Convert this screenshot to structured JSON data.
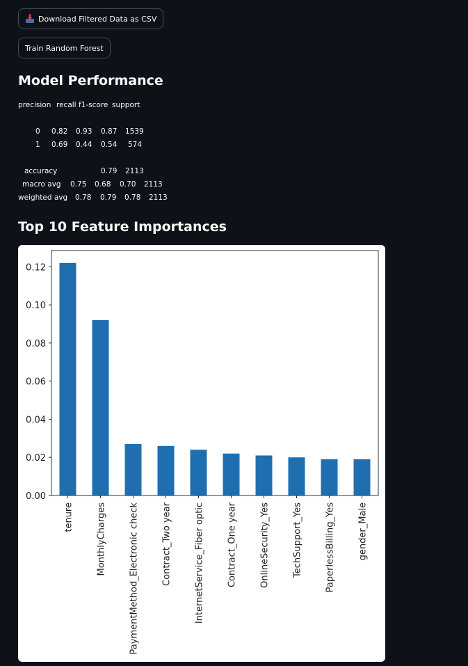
{
  "buttons": {
    "download_label": "Download Filtered Data as CSV",
    "train_label": "Train Random Forest"
  },
  "sections": {
    "model_performance": "Model Performance",
    "feature_importances": "Top 10 Feature Importances"
  },
  "report": {
    "headers": [
      "precision",
      "recall",
      "f1-score",
      "support"
    ],
    "rows": [
      {
        "label": "0",
        "precision": "0.82",
        "recall": "0.93",
        "f1": "0.87",
        "support": "1539"
      },
      {
        "label": "1",
        "precision": "0.69",
        "recall": "0.44",
        "f1": "0.54",
        "support": "574"
      }
    ],
    "accuracy": {
      "label": "accuracy",
      "f1": "0.79",
      "support": "2113"
    },
    "macro": {
      "label": "macro avg",
      "precision": "0.75",
      "recall": "0.68",
      "f1": "0.70",
      "support": "2113"
    },
    "weighted": {
      "label": "weighted avg",
      "precision": "0.78",
      "recall": "0.79",
      "f1": "0.78",
      "support": "2113"
    }
  },
  "chart_data": {
    "type": "bar",
    "title": "",
    "xlabel": "",
    "ylabel": "",
    "categories": [
      "tenure",
      "MonthlyCharges",
      "PaymentMethod_Electronic check",
      "Contract_Two year",
      "InternetService_Fiber optic",
      "Contract_One year",
      "OnlineSecurity_Yes",
      "TechSupport_Yes",
      "PaperlessBilling_Yes",
      "gender_Male"
    ],
    "values": [
      0.122,
      0.092,
      0.027,
      0.026,
      0.024,
      0.022,
      0.021,
      0.02,
      0.019,
      0.019
    ],
    "ylim": [
      0,
      0.1285
    ],
    "yticks": [
      "0.00",
      "0.02",
      "0.04",
      "0.06",
      "0.08",
      "0.10",
      "0.12"
    ],
    "bar_color": "#1f6fb0",
    "grid": false,
    "legend": false
  }
}
